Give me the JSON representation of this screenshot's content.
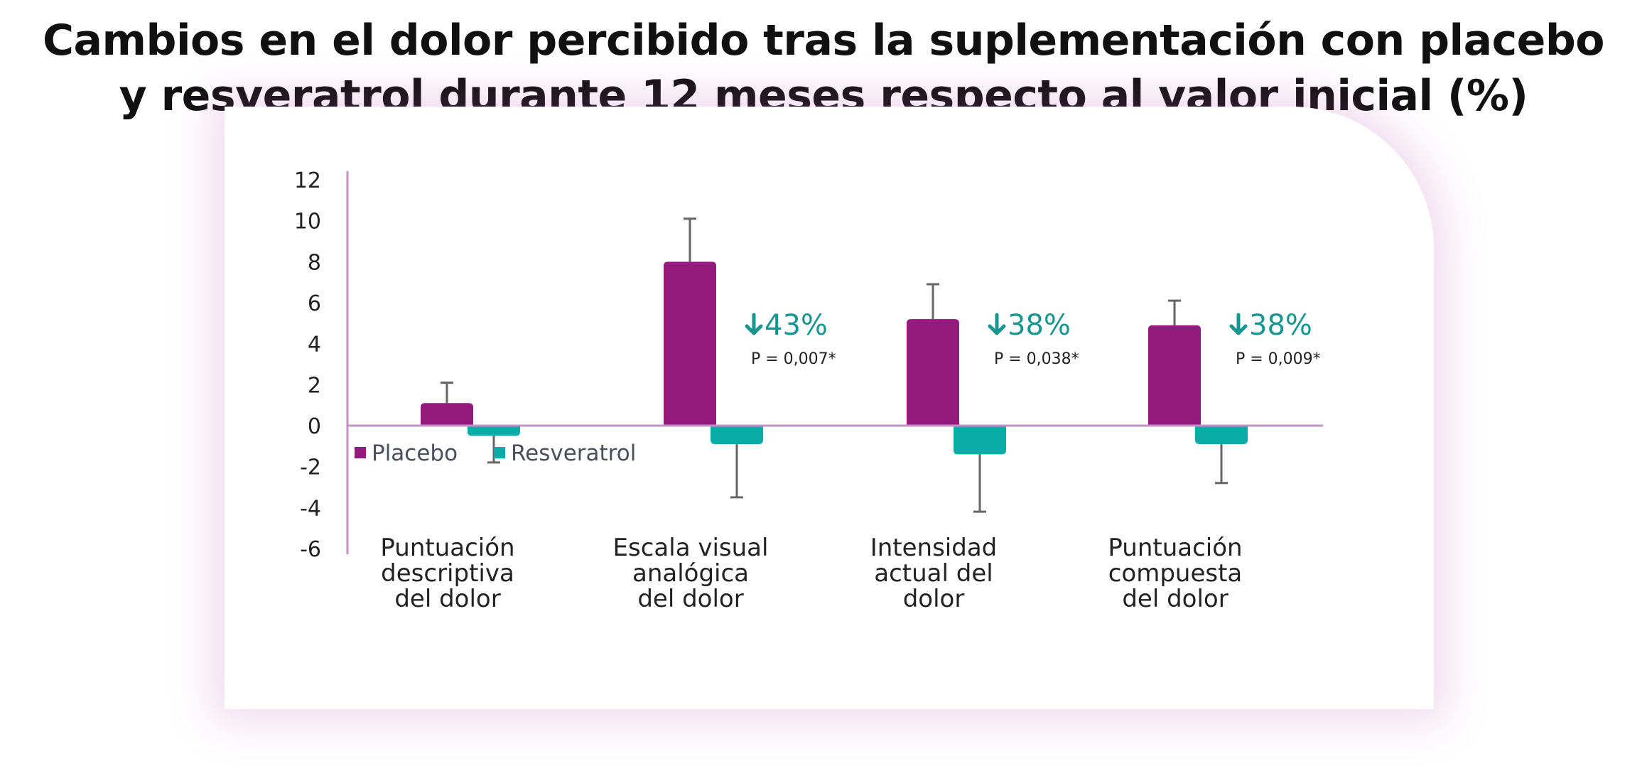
{
  "chart_data": {
    "type": "bar",
    "title_lines": [
      "Cambios en el dolor percibido tras la suplementación con placebo",
      "y resveratrol durante 12 meses respecto al valor inicial (%)"
    ],
    "categories": [
      [
        "Puntuación",
        "descriptiva",
        "del dolor"
      ],
      [
        "Escala visual",
        "analógica",
        "del dolor"
      ],
      [
        "Intensidad",
        "actual del",
        "dolor"
      ],
      [
        "Puntuación",
        "compuesta",
        "del dolor"
      ]
    ],
    "series": [
      {
        "name": "Placebo",
        "color": "#951a7d",
        "values": [
          1.1,
          8.0,
          5.2,
          4.9
        ],
        "error_upper": [
          2.1,
          10.1,
          6.9,
          6.1
        ]
      },
      {
        "name": "Resveratrol",
        "color": "#0aaca7",
        "values": [
          -0.5,
          -0.9,
          -1.4,
          -0.9
        ],
        "error_lower": [
          -1.8,
          -3.5,
          -4.2,
          -2.8
        ]
      }
    ],
    "annotations": [
      {
        "category_index": 1,
        "reduction": "43%",
        "p_value": "P = 0,007*"
      },
      {
        "category_index": 2,
        "reduction": "38%",
        "p_value": "P = 0,038*"
      },
      {
        "category_index": 3,
        "reduction": "38%",
        "p_value": "P = 0,009*"
      }
    ],
    "yticks": [
      "12",
      "10",
      "8",
      "6",
      "4",
      "2",
      "0",
      "-2",
      "-4",
      "-6"
    ],
    "ylim": [
      -6,
      12
    ],
    "legend_position": "bottom-left",
    "grid": false,
    "axis_color": "#c48fc4",
    "annotation_color": "#17968f",
    "error_bar_color": "#666666"
  }
}
